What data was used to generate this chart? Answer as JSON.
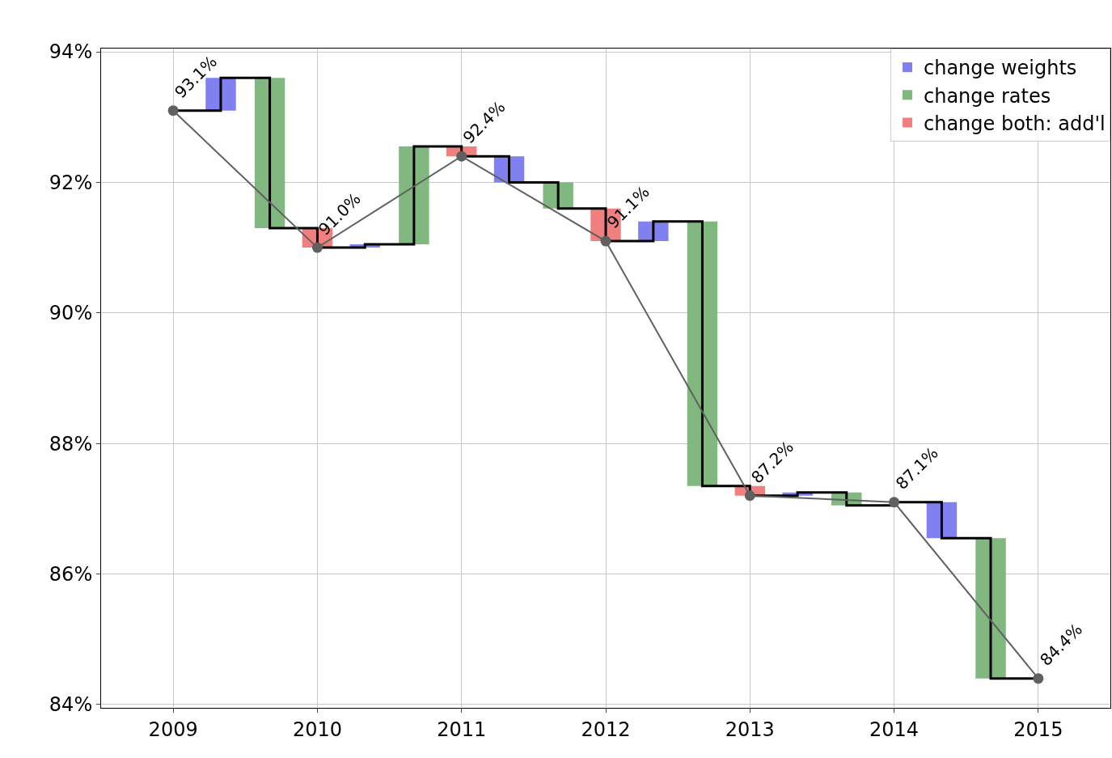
{
  "chart_data": {
    "type": "bar",
    "series": [
      {
        "name": "change weights",
        "color": "#8080f0",
        "x": [
          2009.33,
          2010.33,
          2011.33,
          2012.33,
          2013.33,
          2014.33
        ],
        "base": [
          93.1,
          91.0,
          92.4,
          91.1,
          87.2,
          87.1
        ],
        "values": [
          0.5,
          0.05,
          -0.4,
          0.3,
          0.05,
          -0.55
        ]
      },
      {
        "name": "change rates",
        "color": "#80b880",
        "x": [
          2009.67,
          2010.67,
          2011.67,
          2012.67,
          2013.67,
          2014.67
        ],
        "base": [
          93.6,
          91.05,
          92.0,
          91.4,
          87.25,
          86.55
        ],
        "values": [
          -2.3,
          1.5,
          -0.4,
          -4.05,
          -0.2,
          -2.15
        ]
      },
      {
        "name": "change both: add'l",
        "color": "#f08080",
        "x": [
          2010,
          2011,
          2012,
          2013
        ],
        "base": [
          91.3,
          92.55,
          91.6,
          87.35
        ],
        "values": [
          -0.3,
          -0.15,
          -0.5,
          -0.15
        ]
      },
      {
        "type": "step",
        "color": "#000000",
        "x": [
          2009,
          2009.33,
          2009.67,
          2010,
          2010.33,
          2010.67,
          2011,
          2011.33,
          2011.67,
          2012,
          2012.33,
          2012.67,
          2013,
          2013.33,
          2013.67,
          2014,
          2014.33,
          2014.67,
          2015
        ],
        "values": [
          93.1,
          93.6,
          91.3,
          91.0,
          91.05,
          92.55,
          92.4,
          92.0,
          91.6,
          91.1,
          91.4,
          87.35,
          87.2,
          87.25,
          87.05,
          87.1,
          86.55,
          84.4,
          84.4
        ]
      },
      {
        "type": "line",
        "color": "#606060",
        "marker": "circle",
        "x": [
          2009,
          2010,
          2011,
          2012,
          2013,
          2014,
          2015
        ],
        "values": [
          93.1,
          91.0,
          92.4,
          91.1,
          87.2,
          87.1,
          84.4
        ],
        "value_labels": [
          "93.1%",
          "91.0%",
          "92.4%",
          "91.1%",
          "87.2%",
          "87.1%",
          "84.4%"
        ]
      }
    ],
    "xlim": [
      2008.5,
      2015.5
    ],
    "xticks": [
      2009,
      2010,
      2011,
      2012,
      2013,
      2014,
      2015
    ],
    "ylim": [
      83.95,
      94.05
    ],
    "yticks": [
      {
        "value": 84,
        "label": "84%"
      },
      {
        "value": 86,
        "label": "86%"
      },
      {
        "value": 88,
        "label": "88%"
      },
      {
        "value": 90,
        "label": "90%"
      },
      {
        "value": 92,
        "label": "92%"
      },
      {
        "value": 94,
        "label": "94%"
      }
    ],
    "grid": true,
    "legend": "top right"
  }
}
